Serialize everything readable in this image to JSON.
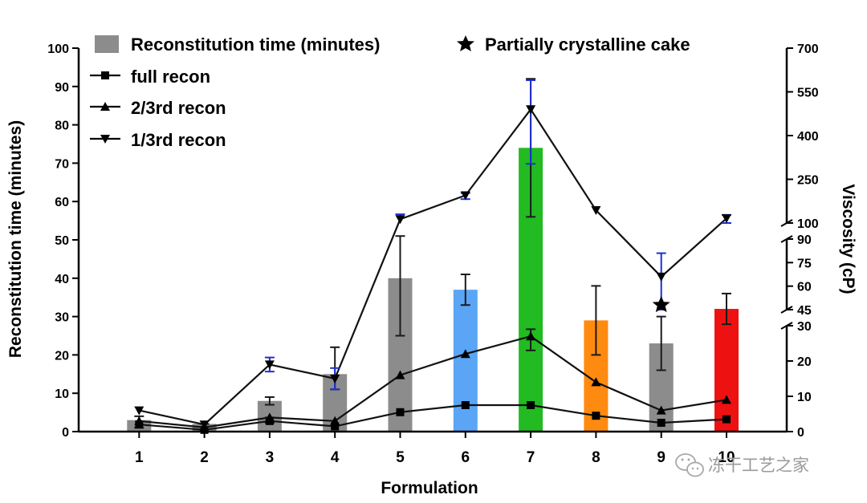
{
  "chart_data": {
    "type": "bar",
    "xlabel": "Formulation",
    "ylabel_left": "Reconstitution time (minutes)",
    "ylabel_right": "Viscosity (cP)",
    "categories": [
      "1",
      "2",
      "3",
      "4",
      "5",
      "6",
      "7",
      "8",
      "9",
      "10"
    ],
    "y_left": {
      "range": [
        0,
        100
      ],
      "ticks": [
        "0",
        "10",
        "20",
        "30",
        "40",
        "50",
        "60",
        "70",
        "80",
        "90",
        "100"
      ]
    },
    "y_right": {
      "segments": [
        {
          "range": [
            0,
            30
          ],
          "ticks": [
            "0",
            "10",
            "20",
            "30"
          ]
        },
        {
          "range": [
            45,
            90
          ],
          "ticks": [
            "45",
            "60",
            "75",
            "90"
          ]
        },
        {
          "range": [
            100,
            700
          ],
          "ticks": [
            "100",
            "250",
            "400",
            "550",
            "700"
          ]
        }
      ]
    },
    "bars": {
      "name": "Reconstitution time (minutes)",
      "values": [
        3,
        2,
        8,
        15,
        40,
        37,
        74,
        29,
        23,
        32
      ],
      "err_low": [
        1,
        0,
        7,
        11,
        25,
        33,
        56,
        20,
        16,
        28
      ],
      "err_high": [
        4,
        2,
        9,
        22,
        51,
        41,
        92,
        38,
        30,
        36
      ],
      "colors": [
        "#8c8c8c",
        "#8c8c8c",
        "#8c8c8c",
        "#8c8c8c",
        "#8c8c8c",
        "#5aa5f5",
        "#22bb22",
        "#ff8a10",
        "#8c8c8c",
        "#ee1111"
      ]
    },
    "series": [
      {
        "name": "full recon",
        "marker": "square",
        "values": [
          2,
          0.5,
          3,
          1.5,
          5.5,
          7.5,
          7.5,
          4.5,
          2.5,
          3.5
        ],
        "err_low": [
          null,
          null,
          2.5,
          null,
          null,
          null,
          null,
          null,
          null,
          null
        ],
        "err_high": [
          null,
          null,
          4,
          null,
          null,
          null,
          null,
          null,
          null,
          null
        ]
      },
      {
        "name": "2/3rd recon",
        "marker": "triangle-up",
        "values": [
          3,
          1.2,
          4,
          3,
          16,
          22,
          27,
          14,
          6,
          9
        ],
        "err_low": [
          null,
          null,
          null,
          null,
          null,
          null,
          23,
          null,
          null,
          null
        ],
        "err_high": [
          null,
          null,
          null,
          null,
          null,
          null,
          29,
          null,
          null,
          null
        ]
      },
      {
        "name": "1/3rd recon",
        "marker": "triangle-down",
        "values": [
          6,
          2,
          19,
          15,
          113,
          195,
          490,
          144,
          66,
          116
        ],
        "err_low": [
          null,
          null,
          17,
          12,
          null,
          182,
          303,
          null,
          43,
          95
        ],
        "err_high": [
          null,
          null,
          21,
          18,
          130,
          203,
          590,
          null,
          81,
          128
        ]
      }
    ],
    "annotations": [
      {
        "label": "Partially crystalline cake",
        "marker": "star",
        "x": "9",
        "y_viscosity": 48
      }
    ],
    "legend_position": "top-left"
  },
  "watermark": {
    "text": "冻干工艺之家",
    "icon": "wechat-bubbles-icon"
  }
}
